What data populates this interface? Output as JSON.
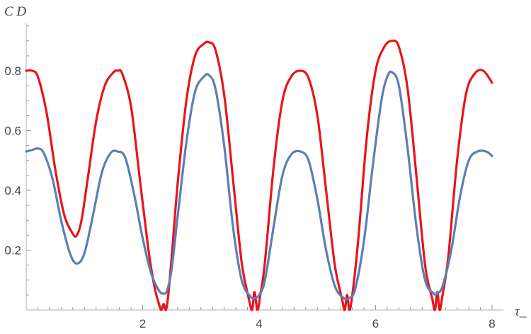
{
  "chart_data": {
    "type": "line",
    "title": "",
    "xlabel": "τ_",
    "ylabel": "C D",
    "xlim": [
      0,
      8.1
    ],
    "ylim": [
      0,
      0.95
    ],
    "x_ticks": [
      2,
      4,
      6,
      8
    ],
    "x_tick_labels": [
      "2",
      "4",
      "6",
      "8"
    ],
    "y_ticks": [
      0.2,
      0.4,
      0.6,
      0.8
    ],
    "y_tick_labels": [
      "0.2",
      "0.4",
      "0.6",
      "0.8"
    ],
    "grid": false,
    "series": [
      {
        "color": "#e8141a",
        "x": [
          0,
          0.1,
          0.2,
          0.35,
          0.5,
          0.65,
          0.8,
          0.87,
          0.95,
          1.05,
          1.2,
          1.35,
          1.5,
          1.57,
          1.65,
          1.8,
          1.95,
          2.1,
          2.2,
          2.28,
          2.32,
          2.36,
          2.4,
          2.44,
          2.5,
          2.6,
          2.75,
          2.9,
          3.05,
          3.14,
          3.25,
          3.4,
          3.55,
          3.7,
          3.82,
          3.88,
          3.92,
          3.97,
          4.02,
          4.1,
          4.25,
          4.4,
          4.55,
          4.71,
          4.85,
          5.0,
          5.15,
          5.3,
          5.42,
          5.47,
          5.51,
          5.55,
          5.6,
          5.7,
          5.85,
          6.0,
          6.15,
          6.28,
          6.4,
          6.55,
          6.7,
          6.85,
          6.97,
          7.02,
          7.06,
          7.1,
          7.15,
          7.25,
          7.4,
          7.55,
          7.7,
          7.85,
          8.0
        ],
        "y": [
          0.8,
          0.8,
          0.78,
          0.66,
          0.47,
          0.32,
          0.255,
          0.25,
          0.3,
          0.43,
          0.63,
          0.75,
          0.795,
          0.8,
          0.79,
          0.68,
          0.44,
          0.2,
          0.08,
          0.02,
          0.0,
          0.02,
          0.0,
          0.05,
          0.18,
          0.42,
          0.7,
          0.85,
          0.89,
          0.895,
          0.87,
          0.72,
          0.44,
          0.16,
          0.04,
          0.0,
          0.06,
          0.0,
          0.05,
          0.16,
          0.48,
          0.7,
          0.78,
          0.8,
          0.775,
          0.65,
          0.4,
          0.15,
          0.04,
          0.0,
          0.05,
          0.0,
          0.05,
          0.23,
          0.58,
          0.8,
          0.88,
          0.9,
          0.88,
          0.74,
          0.45,
          0.15,
          0.04,
          0.0,
          0.06,
          0.0,
          0.05,
          0.18,
          0.5,
          0.72,
          0.79,
          0.8,
          0.76
        ]
      },
      {
        "color": "#5b7fb5",
        "x": [
          0,
          0.1,
          0.2,
          0.3,
          0.45,
          0.6,
          0.75,
          0.87,
          1.0,
          1.15,
          1.3,
          1.45,
          1.57,
          1.7,
          1.85,
          2.0,
          2.15,
          2.28,
          2.35,
          2.42,
          2.5,
          2.6,
          2.75,
          2.9,
          3.05,
          3.14,
          3.25,
          3.4,
          3.55,
          3.7,
          3.85,
          3.92,
          4.0,
          4.1,
          4.25,
          4.4,
          4.55,
          4.71,
          4.85,
          5.0,
          5.15,
          5.3,
          5.45,
          5.55,
          5.65,
          5.8,
          5.95,
          6.1,
          6.2,
          6.28,
          6.4,
          6.55,
          6.7,
          6.85,
          7.0,
          7.06,
          7.15,
          7.3,
          7.45,
          7.6,
          7.75,
          7.9,
          8.0
        ],
        "y": [
          0.53,
          0.535,
          0.54,
          0.525,
          0.44,
          0.3,
          0.19,
          0.155,
          0.19,
          0.32,
          0.46,
          0.525,
          0.53,
          0.51,
          0.39,
          0.24,
          0.12,
          0.065,
          0.055,
          0.065,
          0.14,
          0.31,
          0.56,
          0.73,
          0.78,
          0.785,
          0.74,
          0.55,
          0.28,
          0.1,
          0.045,
          0.04,
          0.05,
          0.1,
          0.28,
          0.45,
          0.52,
          0.53,
          0.5,
          0.37,
          0.2,
          0.08,
          0.04,
          0.04,
          0.07,
          0.23,
          0.48,
          0.7,
          0.78,
          0.795,
          0.75,
          0.54,
          0.28,
          0.1,
          0.055,
          0.055,
          0.08,
          0.2,
          0.38,
          0.5,
          0.53,
          0.53,
          0.515
        ]
      }
    ]
  }
}
